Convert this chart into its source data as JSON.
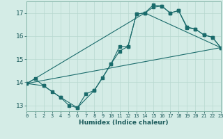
{
  "title": "",
  "xlabel": "Humidex (Indice chaleur)",
  "background_color": "#d4ece6",
  "grid_color": "#b8d8d0",
  "line_color": "#1a6b6b",
  "xlim": [
    0,
    23
  ],
  "ylim": [
    12.75,
    17.5
  ],
  "xticks": [
    0,
    1,
    2,
    3,
    4,
    5,
    6,
    7,
    8,
    9,
    10,
    11,
    12,
    13,
    14,
    15,
    16,
    17,
    18,
    19,
    20,
    21,
    22,
    23
  ],
  "yticks": [
    13,
    14,
    15,
    16,
    17
  ],
  "line1_x": [
    0,
    1,
    2,
    3,
    4,
    5,
    6,
    7,
    8,
    9,
    10,
    11,
    12,
    13,
    14,
    15,
    16,
    17,
    18,
    19,
    20,
    21,
    22,
    23
  ],
  "line1_y": [
    13.95,
    14.15,
    13.85,
    13.6,
    13.35,
    13.0,
    12.9,
    13.5,
    13.65,
    14.2,
    14.8,
    15.55,
    15.55,
    16.95,
    17.0,
    17.25,
    17.3,
    17.0,
    17.1,
    16.4,
    16.3,
    16.05,
    15.95,
    15.5
  ],
  "line2_x": [
    0,
    2,
    4,
    6,
    8,
    10,
    11,
    12,
    13,
    14,
    15,
    16,
    17,
    18,
    19,
    20,
    21,
    22,
    23
  ],
  "line2_y": [
    13.95,
    13.85,
    13.35,
    12.9,
    13.65,
    14.8,
    15.35,
    15.55,
    16.95,
    17.0,
    17.35,
    17.3,
    17.0,
    17.1,
    16.35,
    16.3,
    16.05,
    15.95,
    15.5
  ],
  "line3_x": [
    0,
    23
  ],
  "line3_y": [
    13.95,
    15.5
  ],
  "line4_x": [
    0,
    14,
    23
  ],
  "line4_y": [
    13.95,
    17.0,
    15.5
  ],
  "marker_size": 2.5
}
